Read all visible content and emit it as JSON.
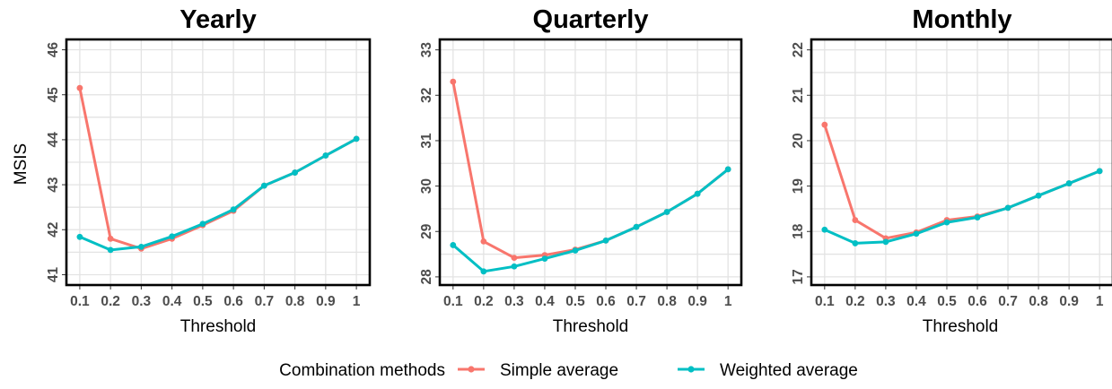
{
  "legend": {
    "title": "Combination methods",
    "items": [
      {
        "label": "Simple average",
        "color": "#F8766D"
      },
      {
        "label": "Weighted average",
        "color": "#00BFC4"
      }
    ]
  },
  "chart_data": [
    {
      "type": "line",
      "title": "Yearly",
      "xlabel": "Threshold",
      "ylabel": "MSIS",
      "x": [
        0.1,
        0.2,
        0.3,
        0.4,
        0.5,
        0.6,
        0.7,
        0.8,
        0.9,
        1
      ],
      "xtick_labels": [
        "0.1",
        "0.2",
        "0.3",
        "0.4",
        "0.5",
        "0.6",
        "0.7",
        "0.8",
        "0.9",
        "1"
      ],
      "ylim": [
        40.8,
        46.2
      ],
      "yticks": [
        41,
        42,
        43,
        44,
        45,
        46
      ],
      "grid": true,
      "series": [
        {
          "name": "Simple average",
          "values": [
            45.15,
            41.8,
            41.58,
            41.8,
            42.1,
            42.42,
            42.98,
            43.27,
            43.65,
            44.02
          ]
        },
        {
          "name": "Weighted average",
          "values": [
            41.84,
            41.55,
            41.62,
            41.85,
            42.13,
            42.45,
            42.98,
            43.27,
            43.65,
            44.02
          ]
        }
      ]
    },
    {
      "type": "line",
      "title": "Quarterly",
      "xlabel": "Threshold",
      "ylabel": "",
      "x": [
        0.1,
        0.2,
        0.3,
        0.4,
        0.5,
        0.6,
        0.7,
        0.8,
        0.9,
        1
      ],
      "xtick_labels": [
        "0.1",
        "0.2",
        "0.3",
        "0.4",
        "0.5",
        "0.6",
        "0.7",
        "0.8",
        "0.9",
        "1"
      ],
      "ylim": [
        27.85,
        33.2
      ],
      "yticks": [
        28,
        29,
        30,
        31,
        32,
        33
      ],
      "grid": true,
      "series": [
        {
          "name": "Simple average",
          "values": [
            32.3,
            28.78,
            28.42,
            28.48,
            28.6,
            28.8,
            29.1,
            29.43,
            29.83,
            30.37
          ]
        },
        {
          "name": "Weighted average",
          "values": [
            28.7,
            28.12,
            28.23,
            28.4,
            28.58,
            28.8,
            29.1,
            29.43,
            29.83,
            30.37
          ]
        }
      ]
    },
    {
      "type": "line",
      "title": "Monthly",
      "xlabel": "Threshold",
      "ylabel": "",
      "x": [
        0.1,
        0.2,
        0.3,
        0.4,
        0.5,
        0.6,
        0.7,
        0.8,
        0.9,
        1
      ],
      "xtick_labels": [
        "0.1",
        "0.2",
        "0.3",
        "0.4",
        "0.5",
        "0.6",
        "0.7",
        "0.8",
        "0.9",
        "1"
      ],
      "ylim": [
        16.85,
        22.2
      ],
      "yticks": [
        17,
        18,
        19,
        20,
        21,
        22
      ],
      "grid": true,
      "series": [
        {
          "name": "Simple average",
          "values": [
            20.35,
            18.25,
            17.85,
            17.98,
            18.25,
            18.33,
            18.52,
            18.79,
            19.06,
            19.33
          ]
        },
        {
          "name": "Weighted average",
          "values": [
            18.04,
            17.74,
            17.77,
            17.95,
            18.2,
            18.31,
            18.52,
            18.79,
            19.06,
            19.33
          ]
        }
      ]
    }
  ]
}
